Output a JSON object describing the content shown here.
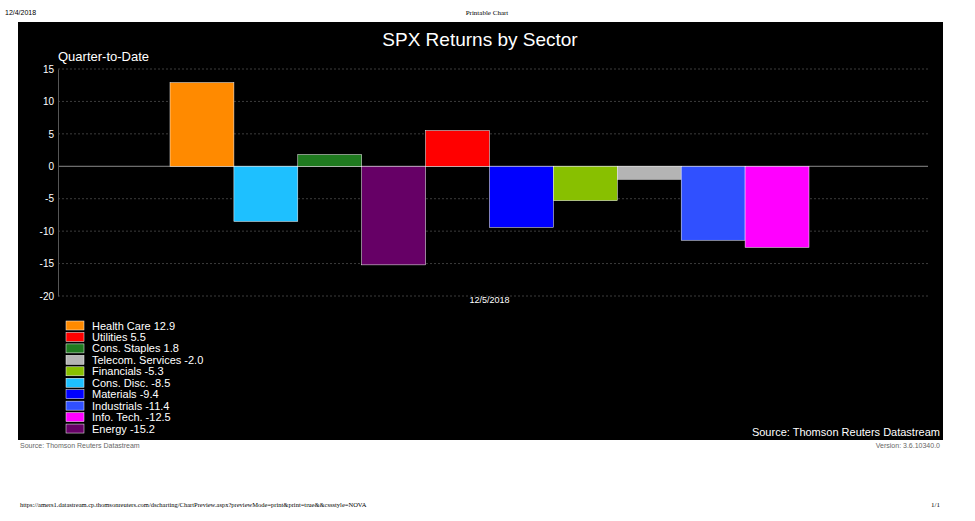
{
  "chart_data": {
    "type": "bar",
    "title": "SPX Returns by Sector",
    "subtitle": "Quarter-to-Date",
    "categories": [
      "12/5/2018"
    ],
    "series": [
      {
        "name": "Health Care 12.9",
        "color": "#ff8a00",
        "values": [
          12.9
        ]
      },
      {
        "name": "Cons. Disc. -8.5",
        "color": "#1ec0ff",
        "values": [
          -8.5
        ]
      },
      {
        "name": "Cons. Staples 1.8",
        "color": "#1f7a1f",
        "values": [
          1.8
        ]
      },
      {
        "name": "Energy -15.2",
        "color": "#660066",
        "values": [
          -15.2
        ]
      },
      {
        "name": "Utilities 5.5",
        "color": "#ff0000",
        "values": [
          5.5
        ]
      },
      {
        "name": "Materials -9.4",
        "color": "#0000ff",
        "values": [
          -9.4
        ]
      },
      {
        "name": "Financials -5.3",
        "color": "#88c000",
        "values": [
          -5.3
        ]
      },
      {
        "name": "Telecom. Services -2.0",
        "color": "#b4b4b4",
        "values": [
          -2.0
        ]
      },
      {
        "name": "Industrials -11.4",
        "color": "#3050ff",
        "values": [
          -11.4
        ]
      },
      {
        "name": "Info. Tech. -12.5",
        "color": "#ff00ff",
        "values": [
          -12.5
        ]
      }
    ],
    "ylim": [
      -20,
      15
    ],
    "yticks": [
      -20,
      -15,
      -10,
      -5,
      0,
      5,
      10,
      15
    ],
    "grid": true,
    "legend": "bottom-left",
    "source": "Source: Thomson Reuters Datastream"
  },
  "page": {
    "date": "12/4/2018",
    "header": "Printable Chart",
    "source": "Source: Thomson Reuters Datastream",
    "version": "Version: 3.6.10340.0",
    "url": "https://amers1.datastream.cp.thomsonreuters.com/dscharting/ChartPreview.aspx?previewMode=print&print=true&&cssstyle=NOVA",
    "page_number": "1/1"
  }
}
